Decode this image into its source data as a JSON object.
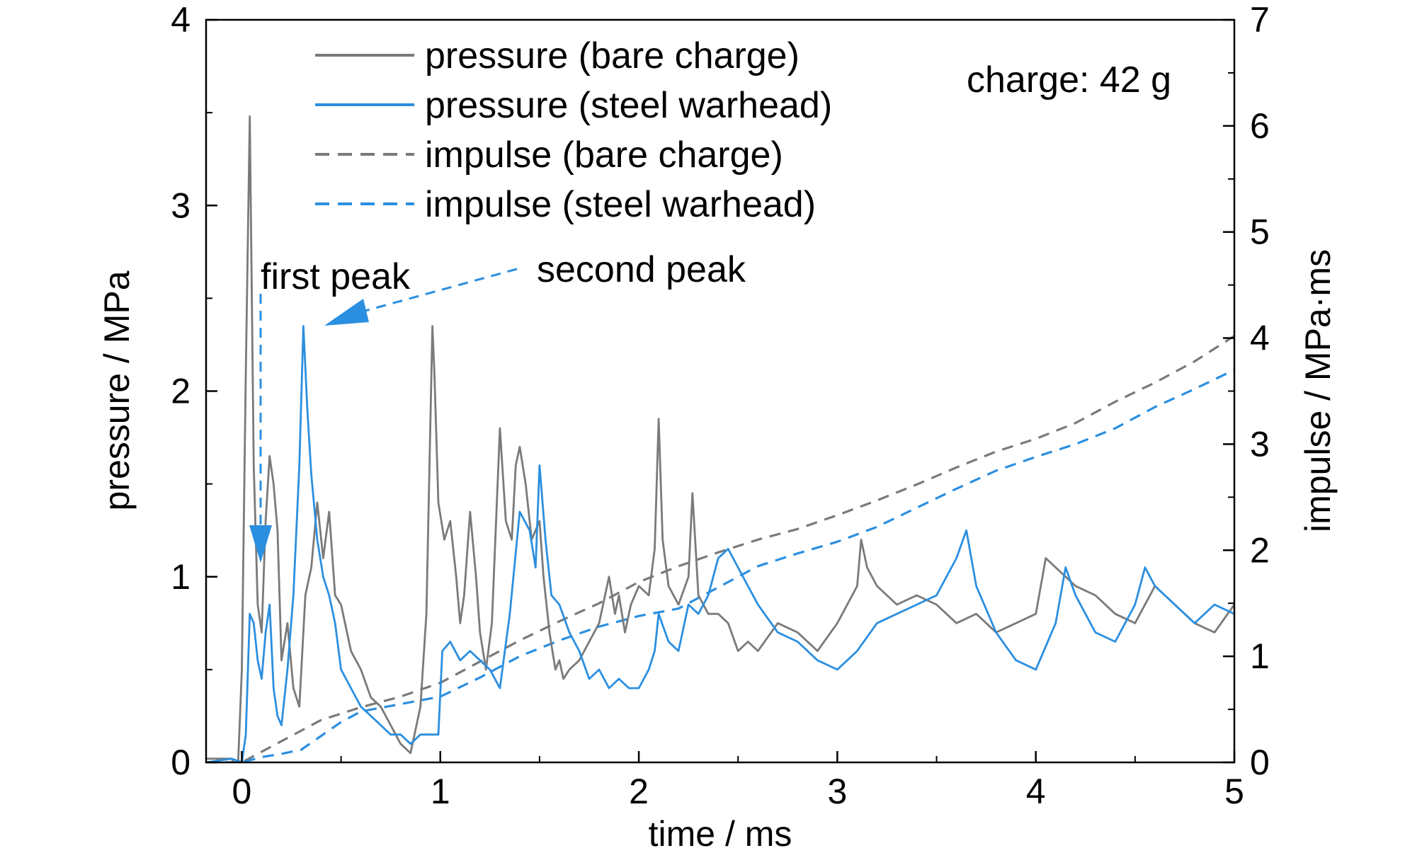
{
  "chart_data": {
    "type": "line",
    "title": "",
    "xlabel": "time / ms",
    "ylabel": "pressure / MPa",
    "y2label": "impulse / MPa·ms",
    "xlim": [
      -0.18,
      5
    ],
    "ylim": [
      0,
      4
    ],
    "y2lim": [
      0,
      7
    ],
    "x_ticks": [
      0,
      1,
      2,
      3,
      4,
      5
    ],
    "x_tick_labels": [
      "0",
      "1",
      "2",
      "3",
      "4",
      "5"
    ],
    "y_ticks": [
      0,
      1,
      2,
      3,
      4
    ],
    "y_tick_labels": [
      "0",
      "1",
      "2",
      "3",
      "4"
    ],
    "y2_ticks": [
      0,
      1,
      2,
      3,
      4,
      5,
      6,
      7
    ],
    "y2_tick_labels": [
      "0",
      "1",
      "2",
      "3",
      "4",
      "5",
      "6",
      "7"
    ],
    "grid": false,
    "legend_position": "top-left",
    "colors": {
      "bare": "#7a7a7a",
      "steel": "#2b8fe0"
    },
    "series": [
      {
        "name": "pressure (bare charge)",
        "axis": "left",
        "style": "solid",
        "color": "#7a7a7a",
        "x": [
          -0.18,
          -0.05,
          -0.02,
          0.0,
          0.02,
          0.04,
          0.06,
          0.08,
          0.1,
          0.12,
          0.14,
          0.16,
          0.18,
          0.2,
          0.23,
          0.26,
          0.29,
          0.32,
          0.35,
          0.38,
          0.41,
          0.44,
          0.47,
          0.5,
          0.55,
          0.6,
          0.65,
          0.7,
          0.75,
          0.8,
          0.85,
          0.88,
          0.9,
          0.93,
          0.96,
          0.97,
          0.99,
          1.02,
          1.05,
          1.08,
          1.1,
          1.12,
          1.15,
          1.18,
          1.2,
          1.23,
          1.26,
          1.3,
          1.33,
          1.36,
          1.38,
          1.4,
          1.43,
          1.46,
          1.5,
          1.52,
          1.55,
          1.58,
          1.6,
          1.62,
          1.65,
          1.7,
          1.75,
          1.8,
          1.85,
          1.88,
          1.9,
          1.93,
          1.96,
          2.0,
          2.05,
          2.08,
          2.1,
          2.12,
          2.15,
          2.2,
          2.25,
          2.27,
          2.3,
          2.35,
          2.4,
          2.45,
          2.5,
          2.55,
          2.6,
          2.7,
          2.8,
          2.9,
          3.0,
          3.1,
          3.12,
          3.15,
          3.2,
          3.3,
          3.4,
          3.5,
          3.6,
          3.7,
          3.8,
          3.9,
          4.0,
          4.05,
          4.1,
          4.2,
          4.3,
          4.4,
          4.5,
          4.6,
          4.7,
          4.8,
          4.9,
          5.0
        ],
        "y": [
          0.02,
          0.02,
          -0.05,
          0.5,
          2.1,
          3.48,
          1.6,
          0.85,
          0.7,
          1.3,
          1.65,
          1.5,
          1.25,
          0.55,
          0.75,
          0.4,
          0.3,
          0.9,
          1.05,
          1.4,
          1.1,
          1.35,
          0.9,
          0.85,
          0.6,
          0.5,
          0.35,
          0.3,
          0.2,
          0.1,
          0.05,
          0.2,
          0.3,
          0.8,
          2.35,
          2.1,
          1.4,
          1.2,
          1.3,
          1.0,
          0.75,
          0.9,
          1.35,
          1.0,
          0.7,
          0.5,
          0.75,
          1.8,
          1.3,
          1.2,
          1.6,
          1.7,
          1.5,
          1.2,
          1.3,
          1.0,
          0.7,
          0.5,
          0.55,
          0.45,
          0.5,
          0.55,
          0.65,
          0.75,
          1.0,
          0.8,
          0.9,
          0.7,
          0.85,
          0.95,
          0.9,
          1.15,
          1.85,
          1.2,
          0.95,
          0.85,
          1.0,
          1.45,
          0.9,
          0.8,
          0.8,
          0.75,
          0.6,
          0.65,
          0.6,
          0.75,
          0.7,
          0.6,
          0.75,
          0.95,
          1.2,
          1.05,
          0.95,
          0.85,
          0.9,
          0.85,
          0.75,
          0.8,
          0.7,
          0.75,
          0.8,
          1.1,
          1.05,
          0.95,
          0.9,
          0.8,
          0.75,
          0.95,
          0.85,
          0.75,
          0.7,
          0.85
        ]
      },
      {
        "name": "pressure (steel warhead)",
        "axis": "left",
        "style": "solid",
        "color": "#2b8fe0",
        "x": [
          -0.18,
          -0.05,
          0.0,
          0.02,
          0.04,
          0.06,
          0.08,
          0.1,
          0.12,
          0.14,
          0.16,
          0.18,
          0.2,
          0.23,
          0.26,
          0.29,
          0.31,
          0.33,
          0.35,
          0.38,
          0.41,
          0.44,
          0.47,
          0.5,
          0.55,
          0.6,
          0.65,
          0.7,
          0.75,
          0.8,
          0.85,
          0.9,
          0.95,
          0.99,
          1.01,
          1.05,
          1.1,
          1.15,
          1.2,
          1.25,
          1.3,
          1.35,
          1.4,
          1.45,
          1.48,
          1.5,
          1.53,
          1.56,
          1.6,
          1.65,
          1.7,
          1.75,
          1.8,
          1.85,
          1.9,
          1.95,
          2.0,
          2.05,
          2.08,
          2.1,
          2.15,
          2.2,
          2.25,
          2.3,
          2.35,
          2.4,
          2.45,
          2.5,
          2.55,
          2.6,
          2.7,
          2.8,
          2.9,
          3.0,
          3.05,
          3.1,
          3.2,
          3.3,
          3.4,
          3.5,
          3.6,
          3.65,
          3.7,
          3.8,
          3.9,
          4.0,
          4.1,
          4.15,
          4.2,
          4.3,
          4.4,
          4.5,
          4.55,
          4.6,
          4.7,
          4.8,
          4.9,
          5.0
        ],
        "y": [
          0.0,
          0.02,
          0.0,
          0.15,
          0.8,
          0.75,
          0.55,
          0.45,
          0.7,
          0.85,
          0.4,
          0.25,
          0.2,
          0.5,
          0.9,
          1.6,
          2.35,
          1.9,
          1.55,
          1.2,
          1.0,
          0.9,
          0.75,
          0.5,
          0.4,
          0.3,
          0.25,
          0.2,
          0.15,
          0.15,
          0.1,
          0.15,
          0.15,
          0.15,
          0.6,
          0.65,
          0.55,
          0.6,
          0.55,
          0.5,
          0.4,
          0.8,
          1.35,
          1.25,
          1.05,
          1.6,
          1.2,
          0.9,
          0.85,
          0.7,
          0.6,
          0.45,
          0.5,
          0.4,
          0.45,
          0.4,
          0.4,
          0.5,
          0.6,
          0.8,
          0.65,
          0.6,
          0.85,
          0.8,
          0.9,
          1.1,
          1.15,
          1.05,
          0.95,
          0.85,
          0.7,
          0.65,
          0.55,
          0.5,
          0.55,
          0.6,
          0.75,
          0.8,
          0.85,
          0.9,
          1.1,
          1.25,
          0.95,
          0.7,
          0.55,
          0.5,
          0.75,
          1.05,
          0.9,
          0.7,
          0.65,
          0.85,
          1.05,
          0.95,
          0.85,
          0.75,
          0.85,
          0.8
        ]
      },
      {
        "name": "impulse (bare charge)",
        "axis": "right",
        "style": "dashed",
        "color": "#7a7a7a",
        "x": [
          -0.18,
          0.0,
          0.05,
          0.2,
          0.4,
          0.6,
          0.8,
          1.0,
          1.2,
          1.4,
          1.6,
          1.8,
          2.0,
          2.2,
          2.4,
          2.6,
          2.8,
          3.0,
          3.2,
          3.4,
          3.6,
          3.8,
          4.0,
          4.2,
          4.4,
          4.6,
          4.8,
          5.0
        ],
        "y": [
          0.0,
          0.0,
          0.05,
          0.2,
          0.4,
          0.52,
          0.62,
          0.75,
          0.95,
          1.15,
          1.33,
          1.5,
          1.7,
          1.85,
          1.98,
          2.1,
          2.2,
          2.33,
          2.47,
          2.62,
          2.78,
          2.93,
          3.05,
          3.2,
          3.4,
          3.58,
          3.78,
          4.02
        ]
      },
      {
        "name": "impulse (steel warhead)",
        "axis": "right",
        "style": "dashed",
        "color": "#2b8fe0",
        "x": [
          -0.18,
          0.0,
          0.1,
          0.2,
          0.3,
          0.4,
          0.5,
          0.6,
          0.8,
          1.0,
          1.2,
          1.4,
          1.6,
          1.8,
          2.0,
          2.2,
          2.4,
          2.6,
          2.8,
          3.0,
          3.2,
          3.4,
          3.6,
          3.8,
          4.0,
          4.2,
          4.4,
          4.6,
          4.8,
          5.0
        ],
        "y": [
          0.0,
          0.0,
          0.05,
          0.08,
          0.12,
          0.25,
          0.38,
          0.48,
          0.55,
          0.62,
          0.8,
          1.0,
          1.15,
          1.28,
          1.38,
          1.45,
          1.65,
          1.85,
          1.97,
          2.08,
          2.22,
          2.4,
          2.58,
          2.75,
          2.88,
          3.0,
          3.15,
          3.35,
          3.52,
          3.7
        ]
      }
    ],
    "annotations": [
      {
        "text": "first peak",
        "x": 0.1,
        "y": 2.55,
        "arrow_to_x": 0.1,
        "arrow_to_y": 1.0
      },
      {
        "text": "second peak",
        "x": 1.45,
        "y": 2.55,
        "arrow_to_x": 0.43,
        "arrow_to_y": 2.33
      },
      {
        "text": "charge: 42 g"
      }
    ]
  }
}
